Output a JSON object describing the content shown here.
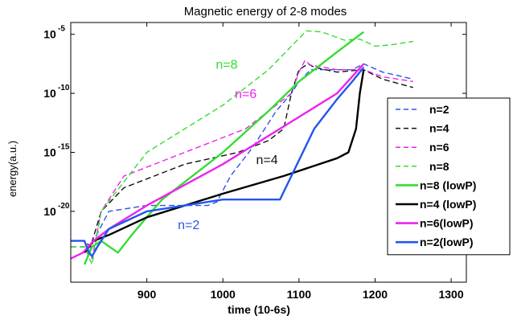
{
  "chart_data": {
    "type": "line",
    "title": "Magnetic energy of 2-8 modes",
    "xlabel": "time (10-6s)",
    "ylabel": "energy(a.u.)",
    "xlim": [
      800,
      1320
    ],
    "ylog": true,
    "ylim_exp": [
      -26,
      -4
    ],
    "x_ticks": [
      900,
      1000,
      1100,
      1200,
      1300
    ],
    "x_tick_labels": [
      "900",
      "1000",
      "1100",
      "1200",
      "1300"
    ],
    "y_ticks_exp": [
      -5,
      -10,
      -15,
      -20
    ],
    "y_tick_base": "10",
    "legend_position": "right",
    "series": [
      {
        "name": "n=2",
        "style": "dashed",
        "color": "#2b55e8",
        "x": [
          800,
          818,
          824,
          830,
          850,
          900,
          980,
          992,
          1010,
          1040,
          1070,
          1090,
          1100,
          1108,
          1115,
          1140,
          1170,
          1185,
          1210,
          1250
        ],
        "log_y": [
          -22.5,
          -22.5,
          -23.5,
          -22.5,
          -20.0,
          -19.5,
          -19.5,
          -19.2,
          -17.0,
          -14.5,
          -11.5,
          -10.0,
          -9.0,
          -8.5,
          -8.0,
          -8.0,
          -8.0,
          -7.5,
          -8.2,
          -8.8
        ]
      },
      {
        "name": "n=4",
        "style": "dashed",
        "color": "#111111",
        "x": [
          800,
          818,
          826,
          840,
          870,
          950,
          1020,
          1060,
          1080,
          1090,
          1100,
          1112,
          1120,
          1150,
          1185,
          1210,
          1250
        ],
        "log_y": [
          -22.5,
          -22.5,
          -23.0,
          -20.0,
          -18.0,
          -16.0,
          -15.0,
          -14.0,
          -13.0,
          -10.0,
          -8.0,
          -7.5,
          -7.8,
          -8.2,
          -8.0,
          -8.8,
          -9.5
        ]
      },
      {
        "name": "n=6",
        "style": "dashed",
        "color": "#ee22ee",
        "x": [
          800,
          818,
          828,
          840,
          870,
          950,
          1030,
          1070,
          1090,
          1100,
          1108,
          1115,
          1150,
          1185,
          1210,
          1250
        ],
        "log_y": [
          -23.0,
          -23.0,
          -24.0,
          -20.0,
          -17.0,
          -15.0,
          -13.0,
          -11.0,
          -10.0,
          -8.2,
          -7.2,
          -7.6,
          -8.0,
          -8.0,
          -8.6,
          -9.0
        ]
      },
      {
        "name": "n=8",
        "style": "dashed",
        "color": "#33dd33",
        "x": [
          800,
          818,
          828,
          840,
          870,
          900,
          1000,
          1060,
          1090,
          1110,
          1130,
          1160,
          1180,
          1200,
          1220,
          1250
        ],
        "log_y": [
          -23.0,
          -23.0,
          -24.5,
          -20.0,
          -17.5,
          -15.0,
          -11.0,
          -8.0,
          -6.0,
          -4.7,
          -4.8,
          -5.5,
          -5.4,
          -6.0,
          -5.9,
          -5.6
        ]
      },
      {
        "name": "n=8 (lowP)",
        "style": "solid",
        "color": "#33dd33",
        "x": [
          818,
          828,
          840,
          862,
          880,
          920,
          1000,
          1060,
          1100,
          1150,
          1185
        ],
        "log_y": [
          -24.5,
          -23.0,
          -22.5,
          -23.5,
          -22.0,
          -19.0,
          -15.0,
          -11.5,
          -9.0,
          -6.5,
          -4.8
        ]
      },
      {
        "name": "n=4 (lowP)",
        "style": "solid",
        "color": "#000000",
        "x": [
          818,
          830,
          850,
          900,
          1000,
          1080,
          1150,
          1165,
          1175,
          1180,
          1185
        ],
        "log_y": [
          -23.5,
          -22.5,
          -22.0,
          -20.5,
          -18.5,
          -17.0,
          -15.5,
          -15.0,
          -13.0,
          -10.0,
          -8.0
        ]
      },
      {
        "name": "n=6(lowP)",
        "style": "solid",
        "color": "#ee22ee",
        "x": [
          800,
          816,
          830,
          850,
          900,
          1000,
          1100,
          1150,
          1185
        ],
        "log_y": [
          -24.0,
          -23.5,
          -22.5,
          -21.5,
          -19.5,
          -16.0,
          -12.0,
          -10.0,
          -7.5
        ]
      },
      {
        "name": "n=2(lowP)",
        "style": "solid",
        "color": "#2255ee",
        "x": [
          800,
          818,
          824,
          828,
          835,
          850,
          900,
          950,
          1000,
          1060,
          1075,
          1090,
          1120,
          1150,
          1170,
          1185
        ],
        "log_y": [
          -22.5,
          -22.5,
          -23.5,
          -23.8,
          -23.0,
          -21.5,
          -20.0,
          -19.5,
          -19.0,
          -19.0,
          -19.0,
          -17.0,
          -13.0,
          -10.5,
          -9.0,
          -7.8
        ]
      }
    ],
    "annotations": [
      {
        "text": "n=8",
        "x": 1005,
        "log_y": -7.9,
        "color": "#33dd33"
      },
      {
        "text": "n=6",
        "x": 1030,
        "log_y": -10.4,
        "color": "#ee22ee"
      },
      {
        "text": "n=4",
        "x": 1058,
        "log_y": -16.0,
        "color": "#111111"
      },
      {
        "text": "n=2",
        "x": 955,
        "log_y": -21.5,
        "color": "#2b55e8"
      }
    ]
  }
}
